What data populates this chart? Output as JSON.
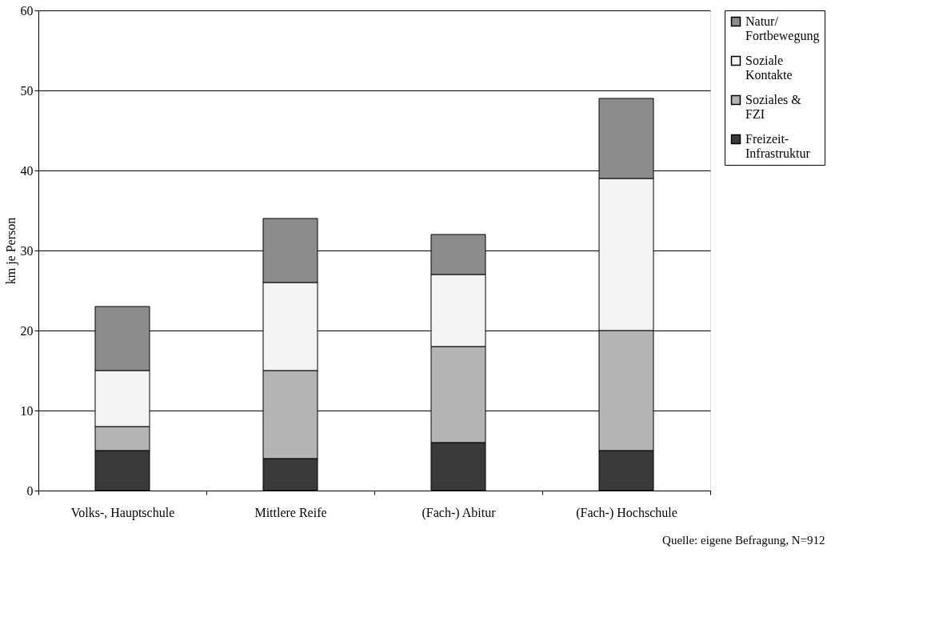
{
  "chart_data": {
    "type": "bar",
    "stacked": true,
    "ylabel": "km je Person",
    "categories": [
      "Volks-, Hauptschule",
      "Mittlere Reife",
      "(Fach-) Abitur",
      "(Fach-) Hochschule"
    ],
    "series": [
      {
        "name": "Freizeit-\nInfrastruktur",
        "color": "#3a3a3a",
        "values": [
          5,
          4,
          6,
          5
        ]
      },
      {
        "name": "Soziales &\nFZI",
        "color": "#b4b4b4",
        "values": [
          3,
          11,
          12,
          15
        ]
      },
      {
        "name": "Soziale\nKontakte",
        "color": "#f4f4f4",
        "values": [
          7,
          11,
          9,
          19
        ]
      },
      {
        "name": "Natur/\nFortbewegung",
        "color": "#8c8c8c",
        "values": [
          8,
          8,
          5,
          10
        ]
      }
    ],
    "ylim": [
      0,
      60
    ],
    "yticks": [
      0,
      10,
      20,
      30,
      40,
      50,
      60
    ],
    "grid": "y",
    "legend": "right",
    "annotations": [
      "Quelle: eigene Befragung, N=912"
    ]
  }
}
